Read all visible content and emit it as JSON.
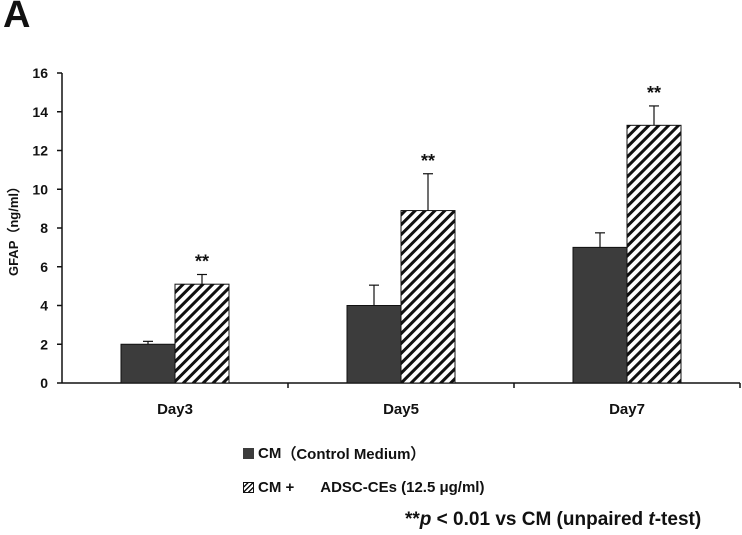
{
  "panel_label": "A",
  "chart_data": {
    "type": "bar",
    "title": "",
    "xlabel": "",
    "ylabel": "GFAP（ng/ml）",
    "ylim": [
      0,
      16
    ],
    "yticks": [
      0,
      2,
      4,
      6,
      8,
      10,
      12,
      14,
      16
    ],
    "grid": false,
    "legend_position": "bottom",
    "categories": [
      "Day3",
      "Day5",
      "Day7"
    ],
    "series": [
      {
        "name": "CM（Control Medium）",
        "values": [
          2.0,
          4.0,
          7.0
        ],
        "errors": [
          0.15,
          1.05,
          0.75
        ],
        "fill": "solid",
        "color": "#3c3c3c"
      },
      {
        "name": "CM + ADSC-CEs (12.5 μg/ml)",
        "values": [
          5.1,
          8.9,
          13.3
        ],
        "errors": [
          0.5,
          1.9,
          1.0
        ],
        "fill": "hatched",
        "color": "#111111"
      }
    ],
    "annotations": [
      "**",
      "**",
      "**"
    ]
  },
  "legend": {
    "items": [
      {
        "prefix": "CM",
        "text": "（Control Medium）"
      },
      {
        "prefix": "CM +",
        "text": "ADSC-CEs (12.5 μg/ml)"
      }
    ]
  },
  "note": {
    "stars": "**",
    "p": "p",
    "mid": " < 0.01 vs CM (unpaired ",
    "t": "t",
    "end": "-test)"
  }
}
